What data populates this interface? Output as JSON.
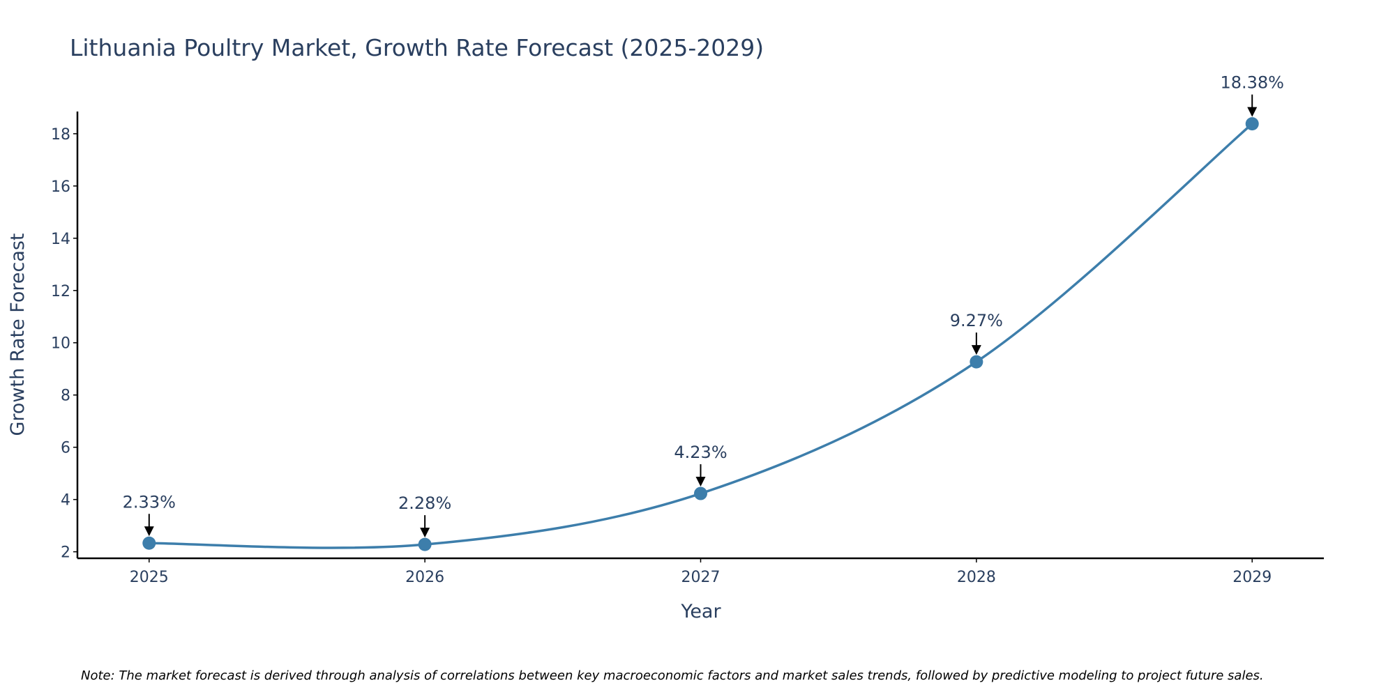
{
  "chart_data": {
    "type": "line",
    "title": "Lithuania Poultry Market, Growth Rate Forecast (2025-2029)",
    "xlabel": "Year",
    "ylabel": "Growth Rate Forecast",
    "x": [
      "2025",
      "2026",
      "2027",
      "2028",
      "2029"
    ],
    "series": [
      {
        "name": "Growth Rate Forecast",
        "values": [
          2.33,
          2.28,
          4.23,
          9.27,
          18.38
        ],
        "color": "#3d7eab"
      }
    ],
    "annotations": [
      "2.33%",
      "2.28%",
      "4.23%",
      "9.27%",
      "18.38%"
    ],
    "ylim": [
      1.75,
      18.85
    ],
    "yticks": [
      2,
      4,
      6,
      8,
      10,
      12,
      14,
      16,
      18
    ],
    "xlim": [
      2024.74,
      2029.26
    ],
    "grid": false,
    "line_shape": "spline",
    "note": "Note: The market forecast is derived through analysis of correlations between key macroeconomic factors and market sales trends, followed by predictive modeling to project future sales."
  }
}
